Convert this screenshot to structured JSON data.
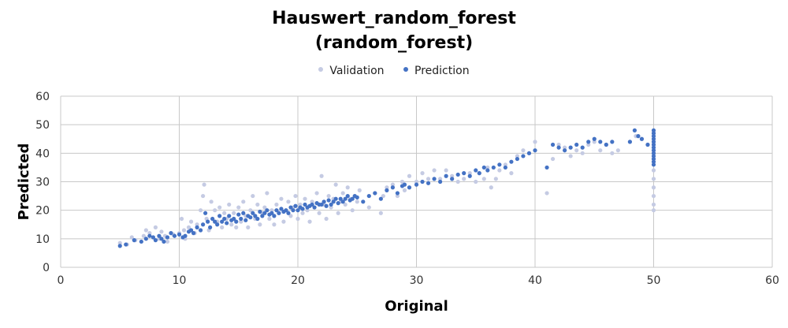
{
  "chart_data": {
    "type": "scatter",
    "title_line1": "Hauswert_random_forest",
    "title_line2": "(random_forest)",
    "xlabel": "Original",
    "ylabel": "Predicted",
    "xlim": [
      0,
      60
    ],
    "ylim": [
      0,
      60
    ],
    "xticks": [
      0,
      10,
      20,
      30,
      40,
      50,
      60
    ],
    "yticks": [
      0,
      10,
      20,
      30,
      40,
      50,
      60
    ],
    "grid": true,
    "legend_position": "top-center",
    "series": [
      {
        "name": "Validation",
        "color": "#c5cbe3",
        "points": [
          [
            5,
            8.5
          ],
          [
            5.6,
            8
          ],
          [
            6,
            10.5
          ],
          [
            6.3,
            9.5
          ],
          [
            7,
            11
          ],
          [
            7.2,
            13
          ],
          [
            7.5,
            12
          ],
          [
            8,
            14
          ],
          [
            8.3,
            10
          ],
          [
            8.5,
            12.5
          ],
          [
            8.8,
            11
          ],
          [
            9,
            9
          ],
          [
            9.5,
            11.5
          ],
          [
            10,
            12
          ],
          [
            10.2,
            17
          ],
          [
            10.4,
            13
          ],
          [
            10.5,
            10
          ],
          [
            10.8,
            14
          ],
          [
            11,
            16
          ],
          [
            11.3,
            12
          ],
          [
            11.5,
            15
          ],
          [
            11.8,
            20
          ],
          [
            12,
            25
          ],
          [
            12.1,
            29
          ],
          [
            12.3,
            17
          ],
          [
            12.5,
            13
          ],
          [
            12.7,
            23
          ],
          [
            13,
            20
          ],
          [
            13.2,
            16
          ],
          [
            13.4,
            21
          ],
          [
            13.6,
            14
          ],
          [
            13.8,
            19
          ],
          [
            14,
            17
          ],
          [
            14.2,
            22
          ],
          [
            14.4,
            15
          ],
          [
            14.6,
            19
          ],
          [
            14.8,
            14
          ],
          [
            15,
            21
          ],
          [
            15.2,
            16
          ],
          [
            15.4,
            23
          ],
          [
            15.6,
            18
          ],
          [
            15.8,
            14
          ],
          [
            16,
            20
          ],
          [
            16.2,
            25
          ],
          [
            16.4,
            17
          ],
          [
            16.6,
            22
          ],
          [
            16.8,
            15
          ],
          [
            17,
            19
          ],
          [
            17.2,
            21
          ],
          [
            17.4,
            26
          ],
          [
            17.6,
            17
          ],
          [
            17.8,
            20
          ],
          [
            18,
            15
          ],
          [
            18.2,
            22
          ],
          [
            18.4,
            19
          ],
          [
            18.6,
            24
          ],
          [
            18.8,
            16
          ],
          [
            19,
            20
          ],
          [
            19.2,
            23
          ],
          [
            19.4,
            18
          ],
          [
            19.6,
            21
          ],
          [
            19.8,
            25
          ],
          [
            20,
            17
          ],
          [
            20.2,
            22
          ],
          [
            20.4,
            19
          ],
          [
            20.6,
            24
          ],
          [
            20.8,
            20
          ],
          [
            21,
            16
          ],
          [
            21.2,
            23
          ],
          [
            21.4,
            21
          ],
          [
            21.6,
            26
          ],
          [
            21.8,
            19
          ],
          [
            22,
            32
          ],
          [
            22.2,
            22
          ],
          [
            22.4,
            17
          ],
          [
            22.6,
            25
          ],
          [
            22.8,
            21
          ],
          [
            23,
            24
          ],
          [
            23.2,
            29
          ],
          [
            23.4,
            19
          ],
          [
            23.6,
            23
          ],
          [
            23.8,
            26
          ],
          [
            24,
            22
          ],
          [
            24.2,
            28
          ],
          [
            24.4,
            24
          ],
          [
            24.6,
            20
          ],
          [
            24.8,
            25
          ],
          [
            25,
            23
          ],
          [
            25.2,
            27
          ],
          [
            26,
            21
          ],
          [
            26.5,
            26
          ],
          [
            27,
            19
          ],
          [
            27.2,
            25
          ],
          [
            27.5,
            28
          ],
          [
            28,
            29
          ],
          [
            28.4,
            25
          ],
          [
            28.8,
            30
          ],
          [
            29,
            27
          ],
          [
            29.4,
            32
          ],
          [
            30,
            30
          ],
          [
            30.5,
            33
          ],
          [
            31,
            31
          ],
          [
            31.5,
            34
          ],
          [
            32,
            31
          ],
          [
            32.5,
            34
          ],
          [
            33,
            32
          ],
          [
            33.5,
            30
          ],
          [
            34,
            31
          ],
          [
            34.5,
            33
          ],
          [
            35,
            30
          ],
          [
            35.3,
            33
          ],
          [
            35.7,
            31
          ],
          [
            36,
            35
          ],
          [
            36.3,
            28
          ],
          [
            36.7,
            31
          ],
          [
            37,
            34
          ],
          [
            37.5,
            36
          ],
          [
            38,
            33
          ],
          [
            38.5,
            39
          ],
          [
            39,
            41
          ],
          [
            39.5,
            40
          ],
          [
            40,
            44
          ],
          [
            41,
            26
          ],
          [
            41.5,
            38
          ],
          [
            42,
            43
          ],
          [
            42.5,
            42
          ],
          [
            43,
            39
          ],
          [
            43.5,
            41
          ],
          [
            44,
            40
          ],
          [
            44.5,
            43
          ],
          [
            45,
            44
          ],
          [
            45.5,
            41
          ],
          [
            46,
            43
          ],
          [
            46.5,
            40
          ],
          [
            47,
            41
          ],
          [
            48,
            44
          ],
          [
            48.5,
            46
          ],
          [
            49,
            45
          ],
          [
            49.5,
            43
          ],
          [
            50,
            20
          ],
          [
            50,
            22
          ],
          [
            50,
            25
          ],
          [
            50,
            28
          ],
          [
            50,
            31
          ],
          [
            50,
            34
          ],
          [
            50,
            38
          ],
          [
            50,
            41
          ],
          [
            50,
            44
          ],
          [
            50,
            47
          ]
        ]
      },
      {
        "name": "Prediction",
        "color": "#4472c4",
        "points": [
          [
            5,
            7.5
          ],
          [
            5.5,
            8
          ],
          [
            6.2,
            9.5
          ],
          [
            6.8,
            9
          ],
          [
            7.2,
            10
          ],
          [
            7.5,
            11
          ],
          [
            7.8,
            10.5
          ],
          [
            8,
            9.5
          ],
          [
            8.3,
            11
          ],
          [
            8.5,
            10
          ],
          [
            8.7,
            9
          ],
          [
            9,
            10.5
          ],
          [
            9.3,
            12
          ],
          [
            9.6,
            11
          ],
          [
            10,
            11.5
          ],
          [
            10.3,
            10.5
          ],
          [
            10.5,
            11
          ],
          [
            10.8,
            12.5
          ],
          [
            11,
            13
          ],
          [
            11.2,
            12
          ],
          [
            11.5,
            14
          ],
          [
            11.8,
            13
          ],
          [
            12,
            15
          ],
          [
            12.2,
            19
          ],
          [
            12.4,
            16
          ],
          [
            12.6,
            14
          ],
          [
            12.8,
            17
          ],
          [
            13,
            16
          ],
          [
            13.2,
            15
          ],
          [
            13.4,
            18
          ],
          [
            13.6,
            16
          ],
          [
            13.8,
            17
          ],
          [
            14,
            15.5
          ],
          [
            14.2,
            18
          ],
          [
            14.4,
            16.5
          ],
          [
            14.6,
            17
          ],
          [
            14.8,
            16
          ],
          [
            15,
            18.5
          ],
          [
            15.2,
            17
          ],
          [
            15.4,
            19
          ],
          [
            15.6,
            16.5
          ],
          [
            15.8,
            18
          ],
          [
            16,
            17.5
          ],
          [
            16.2,
            19
          ],
          [
            16.4,
            18
          ],
          [
            16.6,
            17
          ],
          [
            16.8,
            19.5
          ],
          [
            17,
            18
          ],
          [
            17.2,
            19
          ],
          [
            17.4,
            20
          ],
          [
            17.6,
            18.5
          ],
          [
            17.8,
            19
          ],
          [
            18,
            18
          ],
          [
            18.2,
            20
          ],
          [
            18.4,
            19
          ],
          [
            18.6,
            20.5
          ],
          [
            18.8,
            19.5
          ],
          [
            19,
            20
          ],
          [
            19.2,
            19
          ],
          [
            19.4,
            21
          ],
          [
            19.6,
            20
          ],
          [
            19.8,
            21.5
          ],
          [
            20,
            20
          ],
          [
            20.2,
            21
          ],
          [
            20.4,
            20.5
          ],
          [
            20.6,
            22
          ],
          [
            20.8,
            21
          ],
          [
            21,
            21.5
          ],
          [
            21.2,
            22
          ],
          [
            21.4,
            21
          ],
          [
            21.6,
            22.5
          ],
          [
            21.8,
            22
          ],
          [
            22,
            22
          ],
          [
            22.2,
            23
          ],
          [
            22.4,
            21.5
          ],
          [
            22.6,
            23.5
          ],
          [
            22.8,
            22
          ],
          [
            23,
            23
          ],
          [
            23.2,
            24
          ],
          [
            23.4,
            22.5
          ],
          [
            23.6,
            24
          ],
          [
            23.8,
            23
          ],
          [
            24,
            24
          ],
          [
            24.2,
            25
          ],
          [
            24.4,
            23.5
          ],
          [
            24.6,
            24
          ],
          [
            24.8,
            25
          ],
          [
            25,
            24.5
          ],
          [
            25.5,
            23
          ],
          [
            26,
            25
          ],
          [
            26.5,
            26
          ],
          [
            27,
            24
          ],
          [
            27.5,
            27
          ],
          [
            28,
            28
          ],
          [
            28.4,
            26
          ],
          [
            28.8,
            28.5
          ],
          [
            29,
            29
          ],
          [
            29.4,
            28
          ],
          [
            30,
            29
          ],
          [
            30.5,
            30
          ],
          [
            31,
            29.5
          ],
          [
            31.5,
            31
          ],
          [
            32,
            30
          ],
          [
            32.5,
            32
          ],
          [
            33,
            31
          ],
          [
            33.5,
            32.5
          ],
          [
            34,
            33
          ],
          [
            34.5,
            32
          ],
          [
            35,
            34
          ],
          [
            35.3,
            33
          ],
          [
            35.7,
            35
          ],
          [
            36,
            34
          ],
          [
            36.5,
            35
          ],
          [
            37,
            36
          ],
          [
            37.5,
            35
          ],
          [
            38,
            37
          ],
          [
            38.5,
            38
          ],
          [
            39,
            39
          ],
          [
            39.5,
            40
          ],
          [
            40,
            41
          ],
          [
            41,
            35
          ],
          [
            41.5,
            43
          ],
          [
            42,
            42
          ],
          [
            42.5,
            41
          ],
          [
            43,
            42
          ],
          [
            43.5,
            43
          ],
          [
            44,
            42
          ],
          [
            44.5,
            44
          ],
          [
            45,
            45
          ],
          [
            45.5,
            44
          ],
          [
            46,
            43
          ],
          [
            46.5,
            44
          ],
          [
            48,
            44
          ],
          [
            48.4,
            48
          ],
          [
            48.7,
            46
          ],
          [
            49,
            45
          ],
          [
            49.5,
            43
          ],
          [
            50,
            36
          ],
          [
            50,
            37
          ],
          [
            50,
            38
          ],
          [
            50,
            39
          ],
          [
            50,
            40
          ],
          [
            50,
            41
          ],
          [
            50,
            42
          ],
          [
            50,
            43
          ],
          [
            50,
            44
          ],
          [
            50,
            45
          ],
          [
            50,
            46
          ],
          [
            50,
            47
          ],
          [
            50,
            48
          ]
        ]
      }
    ]
  }
}
